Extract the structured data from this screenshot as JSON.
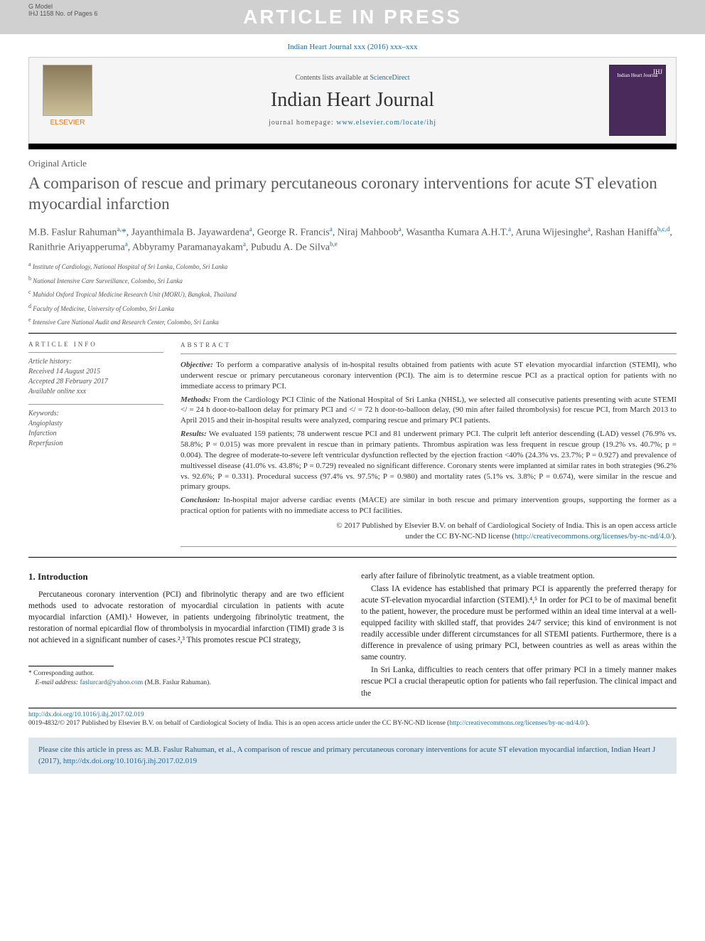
{
  "header": {
    "gmodel_line1": "G Model",
    "gmodel_line2": "IHJ 1158 No. of Pages 6",
    "banner": "ARTICLE IN PRESS",
    "citation": "Indian Heart Journal xxx (2016) xxx–xxx",
    "contents_prefix": "Contents lists available at ",
    "contents_link": "ScienceDirect",
    "journal_title": "Indian Heart Journal",
    "homepage_prefix": "journal homepage: ",
    "homepage_link": "www.elsevier.com/locate/ihj",
    "elsevier": "ELSEVIER",
    "cover_badge": "IHJ",
    "cover_subtitle": "Indian Heart Journal"
  },
  "article": {
    "type": "Original Article",
    "title": "A comparison of rescue and primary percutaneous coronary interventions for acute ST elevation myocardial infarction",
    "authors_html": "M.B. Faslur Rahuman<sup>a,</sup><span class='star'>*</span>, Jayanthimala B. Jayawardena<sup>a</sup>, George R. Francis<sup>a</sup>, Niraj Mahboob<sup>a</sup>, Wasantha Kumara A.H.T.<sup>a</sup>, Aruna Wijesinghe<sup>a</sup>, Rashan Haniffa<sup>b,c,d</sup>, Ranithrie Ariyapperuma<sup>a</sup>, Abbyramy Paramanayakam<sup>a</sup>, Pubudu A. De Silva<sup>b,e</sup>",
    "affiliations": [
      {
        "sup": "a",
        "text": "Institute of Cardiology, National Hospital of Sri Lanka, Colombo, Sri Lanka"
      },
      {
        "sup": "b",
        "text": "National Intensive Care Surveillance, Colombo, Sri Lanka"
      },
      {
        "sup": "c",
        "text": "Mahidol Oxford Tropical Medicine Research Unit (MORU), Bangkok, Thailand"
      },
      {
        "sup": "d",
        "text": "Faculty of Medicine, University of Colombo, Sri Lanka"
      },
      {
        "sup": "e",
        "text": "Intensive Care National Audit and Research Center, Colombo, Sri Lanka"
      }
    ]
  },
  "info": {
    "heading": "ARTICLE INFO",
    "history_label": "Article history:",
    "received": "Received 14 August 2015",
    "accepted": "Accepted 28 February 2017",
    "online": "Available online xxx",
    "keywords_label": "Keywords:",
    "keywords": [
      "Angioplasty",
      "Infarction",
      "Reperfusion"
    ]
  },
  "abstract": {
    "heading": "ABSTRACT",
    "objective_label": "Objective:",
    "objective": " To perform a comparative analysis of in-hospital results obtained from patients with acute ST elevation myocardial infarction (STEMI), who underwent rescue or primary percutaneous coronary intervention (PCI). The aim is to determine rescue PCI as a practical option for patients with no immediate access to primary PCI.",
    "methods_label": "Methods:",
    "methods": " From the Cardiology PCI Clinic of the National Hospital of Sri Lanka (NHSL), we selected all consecutive patients presenting with acute STEMI </ = 24 h door-to-balloon delay for primary PCI and </ = 72 h door-to-balloon delay, (90 min after failed thrombolysis) for rescue PCI, from March 2013 to April 2015 and their in-hospital results were analyzed, comparing rescue and primary PCI patients.",
    "results_label": "Results:",
    "results": " We evaluated 159 patients; 78 underwent rescue PCI and 81 underwent primary PCI. The culprit left anterior descending (LAD) vessel (76.9% vs. 58.8%; P = 0.015) was more prevalent in rescue than in primary patients. Thrombus aspiration was less frequent in rescue group (19.2% vs. 40.7%; p = 0.004). The degree of moderate-to-severe left ventricular dysfunction reflected by the ejection fraction <40% (24.3% vs. 23.7%; P = 0.927) and prevalence of multivessel disease (41.0% vs. 43.8%; P = 0.729) revealed no significant difference. Coronary stents were implanted at similar rates in both strategies (96.2% vs. 92.6%; P = 0.331). Procedural success (97.4% vs. 97.5%; P = 0.980) and mortality rates (5.1% vs. 3.8%; P = 0.674), were similar in the rescue and primary groups.",
    "conclusion_label": "Conclusion:",
    "conclusion": " In-hospital major adverse cardiac events (MACE) are similar in both rescue and primary intervention groups, supporting the former as a practical option for patients with no immediate access to PCI facilities.",
    "copyright_line1": "© 2017 Published by Elsevier B.V. on behalf of Cardiological Society of India. This is an open access article",
    "copyright_line2": "under the CC BY-NC-ND license (",
    "license_link": "http://creativecommons.org/licenses/by-nc-nd/4.0/",
    "copyright_close": ")."
  },
  "body": {
    "intro_heading": "1. Introduction",
    "col1_p1": "Percutaneous coronary intervention (PCI) and fibrinolytic therapy and are two efficient methods used to advocate restoration of myocardial circulation in patients with acute myocardial infarction (AMI).¹ However, in patients undergoing fibrinolytic treatment, the restoration of normal epicardial flow of thrombolysis in myocardial infarction (TIMI) grade 3 is not achieved in a significant number of cases.²,³ This promotes rescue PCI strategy,",
    "col2_p1": "early after failure of fibrinolytic treatment, as a viable treatment option.",
    "col2_p2": "Class IA evidence has established that primary PCI is apparently the preferred therapy for acute ST-elevation myocardial infarction (STEMI).⁴,⁵ In order for PCI to be of maximal benefit to the patient, however, the procedure must be performed within an ideal time interval at a well-equipped facility with skilled staff, that provides 24/7 service; this kind of environment is not readily accessible under different circumstances for all STEMI patients. Furthermore, there is a difference in prevalence of using primary PCI, between countries as well as areas within the same country.",
    "col2_p3": "In Sri Lanka, difficulties to reach centers that offer primary PCI in a timely manner makes rescue PCI a crucial therapeutic option for patients who fail reperfusion. The clinical impact and the"
  },
  "footnote": {
    "corr": "* Corresponding author.",
    "email_label": "E-mail address: ",
    "email": "faslurcard@yahoo.com",
    "email_paren": " (M.B. Faslur Rahuman)."
  },
  "footer": {
    "doi": "http://dx.doi.org/10.1016/j.ihj.2017.02.019",
    "copyright": "0019-4832/© 2017 Published by Elsevier B.V. on behalf of Cardiological Society of India. This is an open access article under the CC BY-NC-ND license (",
    "license_link": "http://creativecommons.org/licenses/by-nc-nd/4.0/",
    "close": ")."
  },
  "citebox": {
    "text_prefix": "Please cite this article in press as: M.B. Faslur Rahuman, et al., A comparison of rescue and primary percutaneous coronary interventions for acute ST elevation myocardial infarction, Indian Heart J (2017), ",
    "link": "http://dx.doi.org/10.1016/j.ihj.2017.02.019"
  },
  "colors": {
    "link": "#1a6ca8",
    "banner_bg": "#d0d0d0",
    "elsevier_orange": "#e67817",
    "citebox_bg": "#dce6ec",
    "citebox_text": "#2a5a7a",
    "cover_bg": "#4a2a5a"
  }
}
